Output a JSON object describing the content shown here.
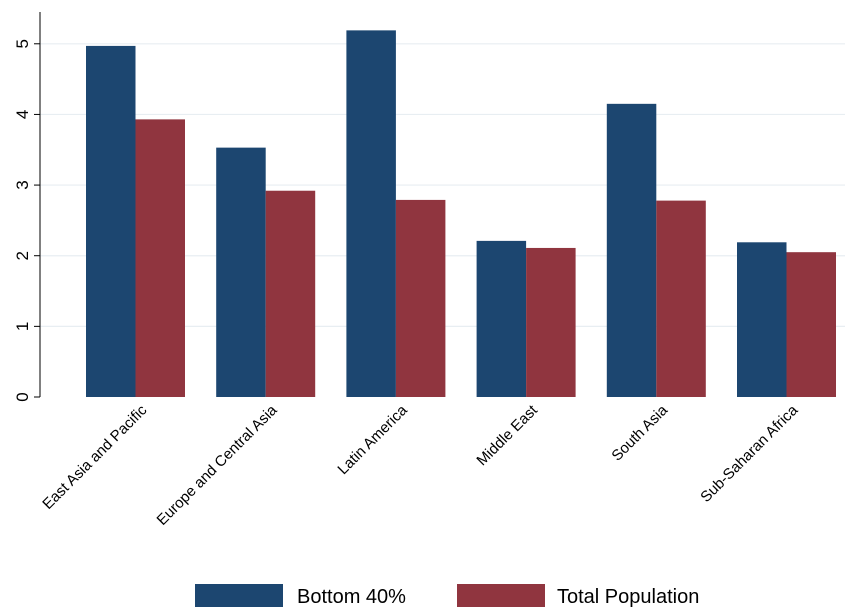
{
  "chart_data": {
    "type": "bar",
    "categories": [
      "East Asia and Pacific",
      "Europe and Central Asia",
      "Latin America",
      "Middle East",
      "South Asia",
      "Sub-Saharan Africa"
    ],
    "series": [
      {
        "name": "Bottom 40%",
        "color": "#1c4670",
        "values": [
          4.97,
          3.53,
          5.19,
          2.21,
          4.15,
          2.19
        ]
      },
      {
        "name": "Total Population",
        "color": "#90353f",
        "values": [
          3.93,
          2.92,
          2.79,
          2.11,
          2.78,
          2.05
        ]
      }
    ],
    "yticks": [
      0,
      1,
      2,
      3,
      4,
      5
    ],
    "ylim": [
      0,
      5.45
    ],
    "grid": true,
    "legend_position": "bottom",
    "title": "",
    "xlabel": "",
    "ylabel": ""
  }
}
